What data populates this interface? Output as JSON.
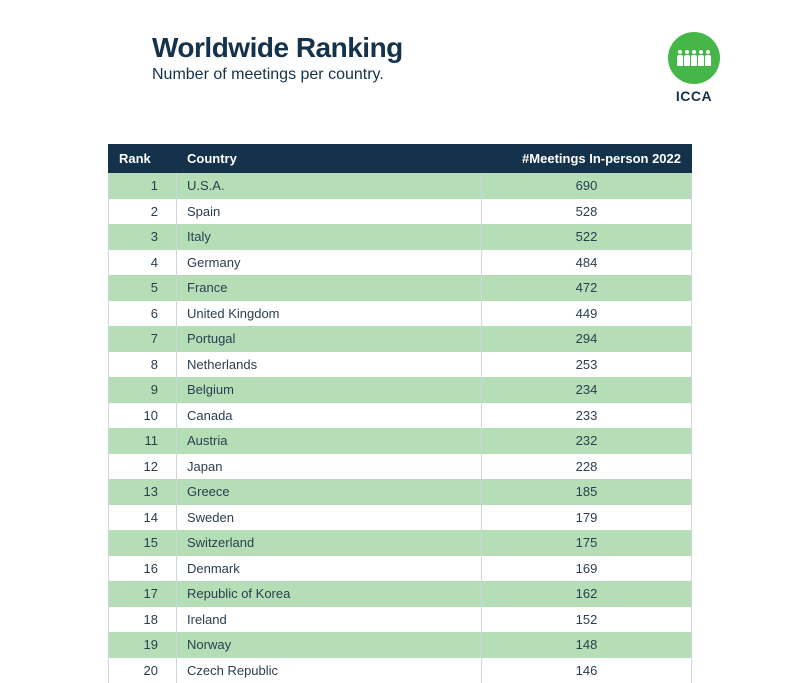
{
  "header": {
    "title": "Worldwide Ranking",
    "subtitle": "Number of meetings per country.",
    "logo_text": "ICCA",
    "logo_bg": "#46b648",
    "title_color": "#14324b"
  },
  "table": {
    "header_bg": "#14324b",
    "row_alt_bg": "#b5deb6",
    "row_bg": "#ffffff",
    "columns": {
      "rank": "Rank",
      "country": "Country",
      "meetings": "#Meetings In-person 2022"
    },
    "rows": [
      {
        "rank": "1",
        "country": "U.S.A.",
        "meetings": "690"
      },
      {
        "rank": "2",
        "country": "Spain",
        "meetings": "528"
      },
      {
        "rank": "3",
        "country": "Italy",
        "meetings": "522"
      },
      {
        "rank": "4",
        "country": "Germany",
        "meetings": "484"
      },
      {
        "rank": "5",
        "country": "France",
        "meetings": "472"
      },
      {
        "rank": "6",
        "country": "United Kingdom",
        "meetings": "449"
      },
      {
        "rank": "7",
        "country": "Portugal",
        "meetings": "294"
      },
      {
        "rank": "8",
        "country": "Netherlands",
        "meetings": "253"
      },
      {
        "rank": "9",
        "country": "Belgium",
        "meetings": "234"
      },
      {
        "rank": "10",
        "country": "Canada",
        "meetings": "233"
      },
      {
        "rank": "11",
        "country": "Austria",
        "meetings": "232"
      },
      {
        "rank": "12",
        "country": "Japan",
        "meetings": "228"
      },
      {
        "rank": "13",
        "country": "Greece",
        "meetings": "185"
      },
      {
        "rank": "14",
        "country": "Sweden",
        "meetings": "179"
      },
      {
        "rank": "15",
        "country": "Switzerland",
        "meetings": "175"
      },
      {
        "rank": "16",
        "country": "Denmark",
        "meetings": "169"
      },
      {
        "rank": "17",
        "country": "Republic of Korea",
        "meetings": "162"
      },
      {
        "rank": "18",
        "country": "Ireland",
        "meetings": "152"
      },
      {
        "rank": "19",
        "country": "Norway",
        "meetings": "148"
      },
      {
        "rank": "20",
        "country": "Czech Republic",
        "meetings": "146"
      }
    ]
  }
}
